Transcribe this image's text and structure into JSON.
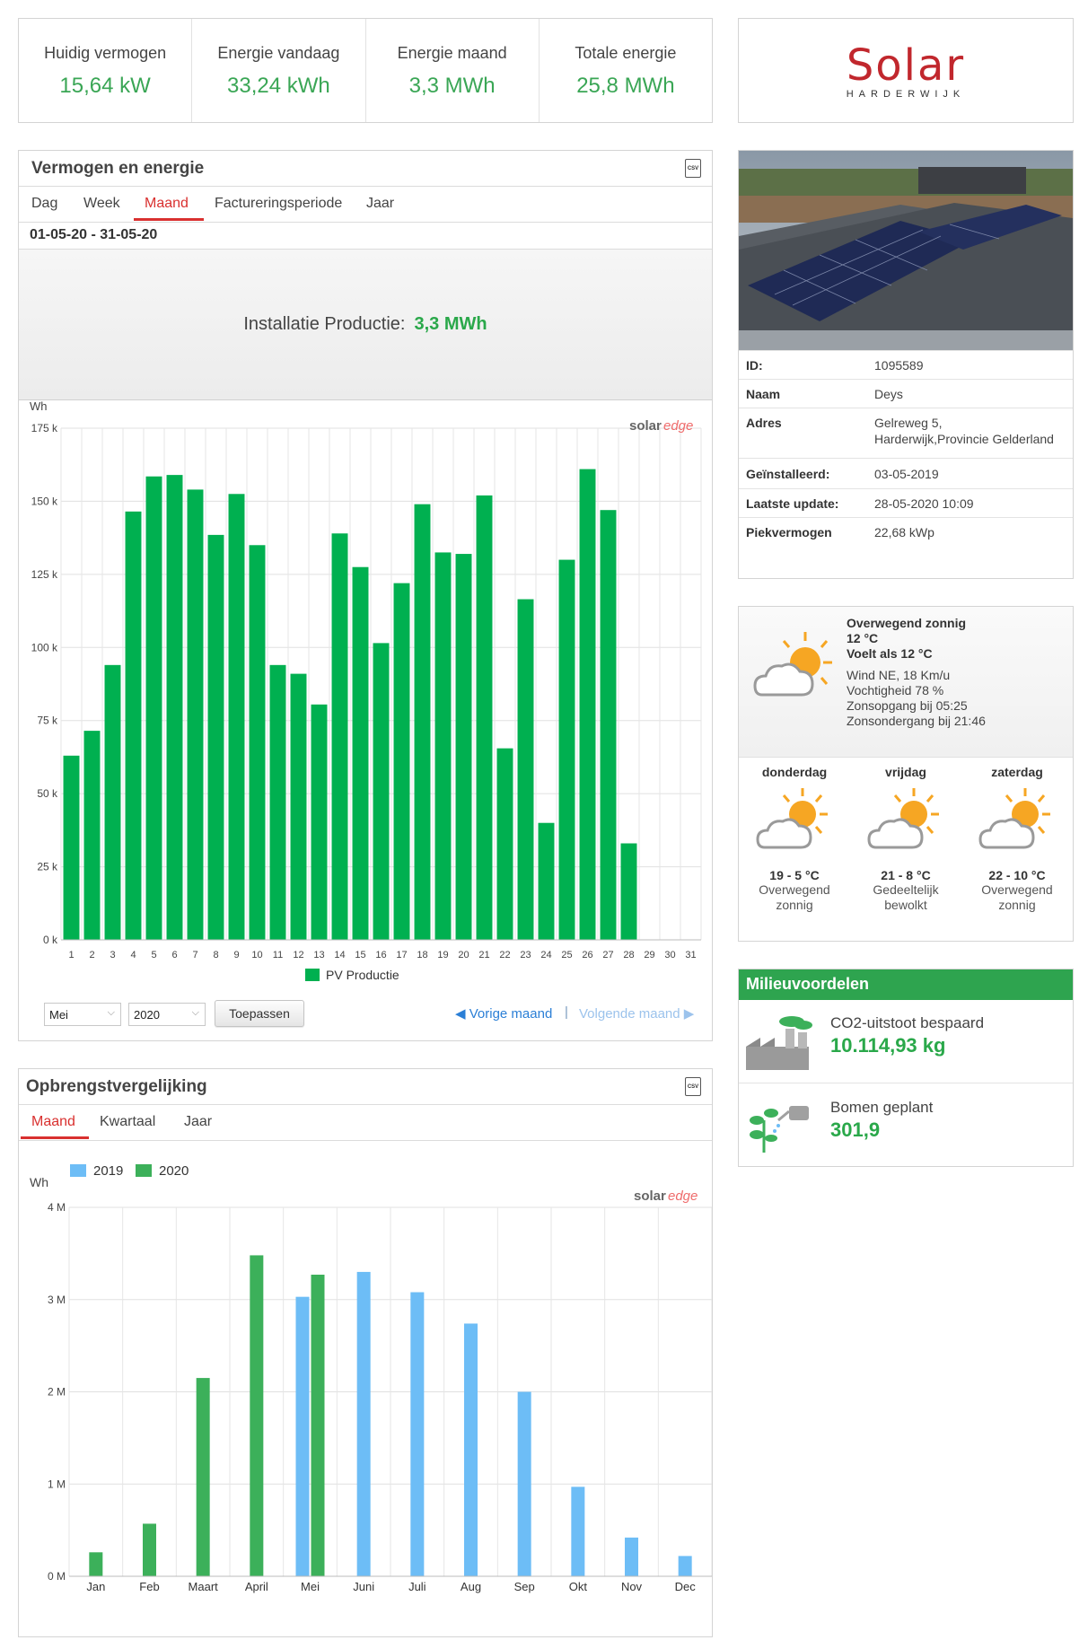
{
  "kpi": [
    {
      "label": "Huidig vermogen",
      "value": "15,64 kW"
    },
    {
      "label": "Energie vandaag",
      "value": "33,24 kWh"
    },
    {
      "label": "Energie maand",
      "value": "3,3 MWh"
    },
    {
      "label": "Totale energie",
      "value": "25,8 MWh"
    }
  ],
  "logo": {
    "word": "Solar",
    "sub": "HARDERWIJK"
  },
  "energy_panel": {
    "title": "Vermogen en energie",
    "csv_label": "CSV",
    "tabs": [
      "Dag",
      "Week",
      "Maand",
      "Factureringsperiode",
      "Jaar"
    ],
    "active_tab": "Maand",
    "date_range": "01-05-20 - 31-05-20",
    "production_label": "Installatie Productie:",
    "production_value": "3,3 MWh",
    "brand": {
      "solar": "solar",
      "edge": "edge"
    },
    "controls": {
      "month_value": "Mei",
      "year_value": "2020",
      "apply_label": "Toepassen",
      "prev_label": "Vorige maand",
      "separator": "|",
      "next_label": "Volgende maand"
    }
  },
  "compare_panel": {
    "title": "Opbrengstvergelijking",
    "csv_label": "CSV",
    "tabs": [
      "Maand",
      "Kwartaal",
      "Jaar"
    ],
    "active_tab": "Maand",
    "brand": {
      "solar": "solar",
      "edge": "edge"
    }
  },
  "site": {
    "rows": [
      {
        "key": "ID:",
        "value": "1095589"
      },
      {
        "key": "Naam",
        "value": "Deys"
      },
      {
        "key": "Adres",
        "value": "Gelreweg 5,",
        "value2": "Harderwijk,Provincie Gelderland"
      },
      {
        "key": "Geïnstalleerd:",
        "value": "03-05-2019"
      },
      {
        "key": "Laatste update:",
        "value": "28-05-2020 10:09"
      },
      {
        "key": "Piekvermogen",
        "value": "22,68 kWp"
      }
    ]
  },
  "weather": {
    "current": {
      "condition": "Overwegend zonnig",
      "temp": "12 °C",
      "feels": "Voelt als 12 °C",
      "wind": "Wind NE, 18 Km/u",
      "humidity": "Vochtigheid 78 %",
      "sunrise": "Zonsopgang bij 05:25",
      "sunset": "Zonsondergang bij 21:46",
      "icon": "partly-sunny-icon"
    },
    "forecast": [
      {
        "day": "donderdag",
        "temp": "19 - 5 °C",
        "desc1": "Overwegend",
        "desc2": "zonnig"
      },
      {
        "day": "vrijdag",
        "temp": "21 - 8 °C",
        "desc1": "Gedeeltelijk",
        "desc2": "bewolkt"
      },
      {
        "day": "zaterdag",
        "temp": "22 - 10 °C",
        "desc1": "Overwegend",
        "desc2": "zonnig"
      }
    ]
  },
  "environment": {
    "title": "Milieuvoordelen",
    "co2_label": "CO2-uitstoot bespaard",
    "co2_value": "10.114,93 kg",
    "trees_label": "Bomen geplant",
    "trees_value": "301,9"
  },
  "colors": {
    "green": "#00b050",
    "green2020": "#3cb05a",
    "blue2019": "#6dbdf6",
    "red": "#d9302f",
    "link": "#2b7fd6"
  },
  "chart_data": [
    {
      "type": "bar",
      "ylabel": "Wh",
      "ylim": [
        0,
        175000
      ],
      "yticks": [
        "0 k",
        "25 k",
        "50 k",
        "75 k",
        "100 k",
        "125 k",
        "150 k",
        "175 k"
      ],
      "categories": [
        "1",
        "2",
        "3",
        "4",
        "5",
        "6",
        "7",
        "8",
        "9",
        "10",
        "11",
        "12",
        "13",
        "14",
        "15",
        "16",
        "17",
        "18",
        "19",
        "20",
        "21",
        "22",
        "23",
        "24",
        "25",
        "26",
        "27",
        "28",
        "29",
        "30",
        "31"
      ],
      "series": [
        {
          "name": "PV Productie",
          "color": "#00b050",
          "values": [
            63000,
            71500,
            94000,
            146500,
            158500,
            159000,
            154000,
            138500,
            152500,
            135000,
            94000,
            91000,
            80500,
            139000,
            127500,
            101500,
            122000,
            149000,
            132500,
            132000,
            152000,
            65500,
            116500,
            40000,
            130000,
            161000,
            147000,
            33000,
            null,
            null,
            null
          ]
        }
      ],
      "grid": true,
      "legend": "bottom-center"
    },
    {
      "type": "bar",
      "ylabel": "Wh",
      "ylim": [
        0,
        4000000
      ],
      "yticks": [
        "0 M",
        "1 M",
        "2 M",
        "3 M",
        "4 M"
      ],
      "categories": [
        "Jan",
        "Feb",
        "Maart",
        "April",
        "Mei",
        "Juni",
        "Juli",
        "Aug",
        "Sep",
        "Okt",
        "Nov",
        "Dec"
      ],
      "series": [
        {
          "name": "2019",
          "color": "#6dbdf6",
          "values": [
            null,
            null,
            null,
            null,
            3030000,
            3300000,
            3080000,
            2740000,
            2000000,
            970000,
            420000,
            220000
          ]
        },
        {
          "name": "2020",
          "color": "#3cb05a",
          "values": [
            260000,
            570000,
            2150000,
            3480000,
            3270000,
            null,
            null,
            null,
            null,
            null,
            null,
            null
          ]
        }
      ],
      "grid": true,
      "legend": "top-left"
    }
  ]
}
